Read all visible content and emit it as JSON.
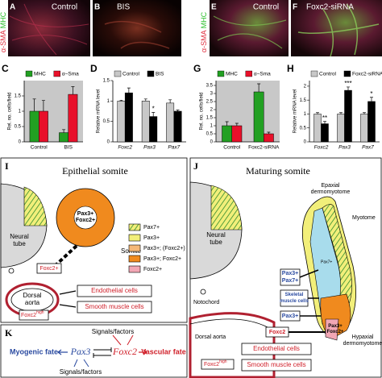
{
  "images": [
    {
      "panel": "A",
      "label": "Control",
      "stain": [
        "α-SMA",
        "MHC"
      ]
    },
    {
      "panel": "B",
      "label": "BIS"
    },
    {
      "panel": "E",
      "label": "Control",
      "stain": [
        "α-SMA",
        "MHC"
      ]
    },
    {
      "panel": "F",
      "label": "Foxc2-siRNA"
    }
  ],
  "chart_data": [
    {
      "type": "bar",
      "panel_label": "C",
      "ylabel": "Rel. no. cells/field",
      "categories": [
        "Control",
        "BIS"
      ],
      "series": [
        {
          "name": "MHC",
          "color": "#22a022",
          "values": [
            1.0,
            0.3
          ],
          "errors": [
            0.4,
            0.1
          ]
        },
        {
          "name": "α−Sma",
          "color": "#e8102a",
          "values": [
            1.0,
            1.55
          ],
          "errors": [
            0.35,
            0.25
          ]
        }
      ],
      "ylim": [
        0,
        2
      ],
      "yticks": [
        0,
        0.5,
        1,
        1.5
      ],
      "background": "#c8c8c8",
      "legend": "top",
      "category_style": "normal"
    },
    {
      "type": "bar",
      "panel_label": "D",
      "ylabel": "Relative mRNA level",
      "categories": [
        "Foxc2",
        "Pax3",
        "Pax7"
      ],
      "series": [
        {
          "name": "Control",
          "color": "#c8c8c8",
          "values": [
            1.0,
            1.0,
            0.95
          ],
          "errors": [
            0.02,
            0.05,
            0.08
          ]
        },
        {
          "name": "BIS",
          "color": "#000000",
          "values": [
            1.2,
            0.62,
            0.75
          ],
          "errors": [
            0.12,
            0.1,
            0.03
          ],
          "significance": [
            null,
            "*",
            null
          ]
        }
      ],
      "ylim": [
        0,
        1.5
      ],
      "yticks": [
        0,
        0.5,
        1,
        1.5
      ],
      "background": "#ffffff",
      "legend": "top",
      "category_style": "italic"
    },
    {
      "type": "bar",
      "panel_label": "G",
      "ylabel": "Rel. no. cells/field",
      "categories": [
        "Control",
        "Foxc2-siRNA"
      ],
      "series": [
        {
          "name": "MHC",
          "color": "#22a022",
          "values": [
            1.0,
            3.1
          ],
          "errors": [
            0.25,
            0.5
          ]
        },
        {
          "name": "α−Sma",
          "color": "#e8102a",
          "values": [
            1.0,
            0.5
          ],
          "errors": [
            0.15,
            0.1
          ]
        }
      ],
      "ylim": [
        0,
        3.8
      ],
      "yticks": [
        0,
        0.5,
        1,
        1.5,
        2,
        2.5,
        3,
        3.5
      ],
      "background": "#c8c8c8",
      "legend": "top",
      "category_style": "normal"
    },
    {
      "type": "bar",
      "panel_label": "H",
      "ylabel": "Relative mRNA level",
      "categories": [
        "Foxc2",
        "Pax3",
        "Pax7"
      ],
      "series": [
        {
          "name": "Control",
          "color": "#c8c8c8",
          "values": [
            1.0,
            1.0,
            1.0
          ],
          "errors": [
            0.05,
            0.05,
            0.05
          ]
        },
        {
          "name": "Foxc2-siRNA",
          "color": "#000000",
          "values": [
            0.65,
            1.85,
            1.45
          ],
          "errors": [
            0.08,
            0.12,
            0.15
          ],
          "significance": [
            "**",
            "***",
            "*"
          ]
        }
      ],
      "ylim": [
        0,
        2.2
      ],
      "yticks": [
        0,
        0.5,
        1,
        1.5,
        2
      ],
      "background": "#ffffff",
      "legend": "top",
      "category_style": "italic"
    }
  ],
  "panel_i": {
    "label": "I",
    "title": "Epithelial somite",
    "neural_tube": [
      "Neural",
      "tube"
    ],
    "somite_cells": [
      "Pax3+",
      "Foxc2+"
    ],
    "somite": "Somite",
    "foxc2": "Foxc2+",
    "aorta": [
      "Dorsal",
      "aorta"
    ],
    "foxc2_high": {
      "text": "Foxc2",
      "sup": "high"
    },
    "endothelial": "Endothelial cells",
    "smooth": "Smooth muscle cells",
    "legend": [
      "Pax7+",
      "Pax3+",
      "Pax3+; (Foxc2+)",
      "Pax3+; Foxc2+",
      "Foxc2+"
    ]
  },
  "panel_j": {
    "label": "J",
    "title": "Maturing somite",
    "neural_tube": [
      "Neural",
      "tube"
    ],
    "epaxial": [
      "Epaxial",
      "dermomyotome"
    ],
    "myotome": "Myotome",
    "pax7": "Pax7+",
    "pax3_pax7": [
      "Pax3+",
      "Pax7+"
    ],
    "skeletal": [
      "Skeletal",
      "muscle cells"
    ],
    "pax3": "Pax3+",
    "pax3_foxc2": [
      "Pax3+",
      "Foxc2+"
    ],
    "hypaxial": [
      "Hypaxial",
      "dermomyotome"
    ],
    "notochord": "Notochord",
    "aorta": "Dorsal aorta",
    "foxc2": "Foxc2",
    "endothelial": "Endothelial cells",
    "smooth": "Smooth muscle cells",
    "foxc2_high": {
      "text": "Foxc2",
      "sup": "high"
    }
  },
  "panel_k": {
    "label": "K",
    "signals_top": "Signals/factors",
    "myogenic": "Myogenic fate",
    "pax3": "Pax3",
    "foxc2": "Foxc2",
    "vascular": "Vascular fate",
    "signals_bottom": "Signals/factors"
  }
}
